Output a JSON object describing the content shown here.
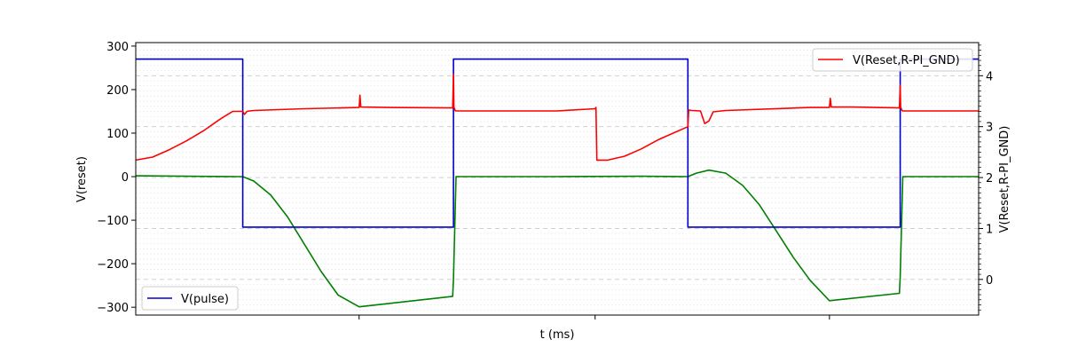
{
  "chart_data": {
    "type": "line",
    "xlabel": "t (ms)",
    "ylabel_left": "V(reset)",
    "ylabel_right": "V(Reset,R-PI_GND)",
    "ylim_left": [
      -318,
      308
    ],
    "ylim_right": [
      -0.7,
      4.65
    ],
    "left_ticks": [
      300,
      200,
      100,
      0,
      -100,
      -200,
      -300
    ],
    "right_ticks": [
      4,
      3,
      2,
      1,
      0
    ],
    "x_tick_labels": [],
    "xlim": [
      0,
      1
    ],
    "grid": "dashed horizontal major and dotted minor lines",
    "legends": [
      {
        "label": "V(Reset,R-PI_GND)",
        "placement": "top-right",
        "color": "#ff0000"
      },
      {
        "label": "V(pulse)",
        "placement": "bottom-left",
        "color": "#0000cc"
      }
    ],
    "series": [
      {
        "name": "V(pulse)",
        "axis": "left",
        "color": "#0000cc",
        "x": [
          0,
          0.127,
          0.127,
          0.377,
          0.377,
          0.655,
          0.655,
          0.907,
          0.907,
          1.0
        ],
        "y": [
          270,
          270,
          -116,
          -116,
          270,
          270,
          -116,
          -116,
          270,
          270
        ]
      },
      {
        "name": "V(Reset,R-PI_GND)",
        "axis": "left",
        "color": "#ff0000",
        "x": [
          0,
          0.02,
          0.04,
          0.06,
          0.08,
          0.1,
          0.115,
          0.127,
          0.129,
          0.132,
          0.135,
          0.14,
          0.2,
          0.265,
          0.266,
          0.267,
          0.3,
          0.376,
          0.377,
          0.3775,
          0.379,
          0.38,
          0.39,
          0.5,
          0.545,
          0.546,
          0.547,
          0.56,
          0.58,
          0.6,
          0.62,
          0.655,
          0.656,
          0.66,
          0.67,
          0.675,
          0.68,
          0.685,
          0.69,
          0.7,
          0.8,
          0.823,
          0.824,
          0.825,
          0.85,
          0.906,
          0.907,
          0.9075,
          0.909,
          0.91,
          0.93,
          1.0
        ],
        "y": [
          38,
          45,
          62,
          82,
          105,
          132,
          150,
          150,
          143,
          150,
          151,
          152,
          156,
          159,
          187,
          160,
          159,
          158,
          235,
          160,
          152,
          151,
          151,
          151,
          156,
          159,
          38,
          38,
          47,
          64,
          85,
          115,
          153,
          152,
          151,
          122,
          128,
          149,
          150,
          152,
          159,
          159,
          180,
          160,
          160,
          158,
          210,
          160,
          152,
          151,
          151,
          151
        ]
      },
      {
        "name": "",
        "axis": "left",
        "color": "#008000",
        "x": [
          0,
          0.06,
          0.12,
          0.127,
          0.14,
          0.16,
          0.18,
          0.2,
          0.22,
          0.24,
          0.265,
          0.376,
          0.377,
          0.38,
          0.5,
          0.6,
          0.655,
          0.665,
          0.68,
          0.7,
          0.72,
          0.74,
          0.76,
          0.78,
          0.8,
          0.823,
          0.906,
          0.907,
          0.91,
          1.0
        ],
        "y": [
          2,
          1,
          0,
          0,
          -10,
          -42,
          -92,
          -155,
          -218,
          -272,
          -299,
          -275,
          -235,
          0,
          0,
          1,
          0,
          8,
          15,
          8,
          -20,
          -65,
          -125,
          -185,
          -238,
          -285,
          -268,
          -230,
          0,
          0
        ]
      }
    ]
  }
}
